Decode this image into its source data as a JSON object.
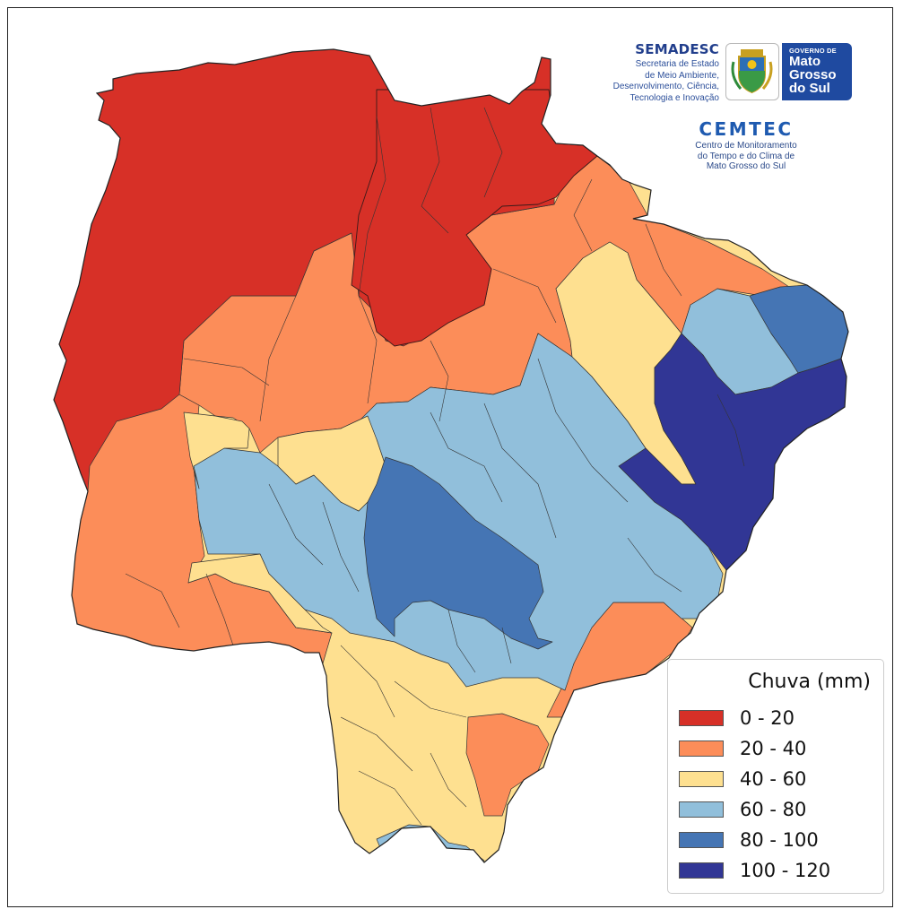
{
  "logos": {
    "semadesc_title": "SEMADESC",
    "semadesc_lines": [
      "Secretaria de Estado",
      "de Meio Ambiente,",
      "Desenvolvimento, Ciência,",
      "Tecnologia e Inovação"
    ],
    "gov_small": "GOVERNO DE",
    "gov_lines": [
      "Mato",
      "Grosso",
      "do Sul"
    ],
    "cemtec_title": "CEMTEC",
    "cemtec_lines": [
      "Centro de Monitoramento",
      "do Tempo e do Clima de",
      "Mato Grosso do Sul"
    ]
  },
  "legend": {
    "title": "Chuva (mm)",
    "items": [
      {
        "label": "0 - 20",
        "color": "#d73027"
      },
      {
        "label": "20 - 40",
        "color": "#fc8d59"
      },
      {
        "label": "40 - 60",
        "color": "#fee090"
      },
      {
        "label": "60 - 80",
        "color": "#91bfdb"
      },
      {
        "label": "80 - 100",
        "color": "#4575b4"
      },
      {
        "label": "100 - 120",
        "color": "#313695"
      }
    ]
  }
}
